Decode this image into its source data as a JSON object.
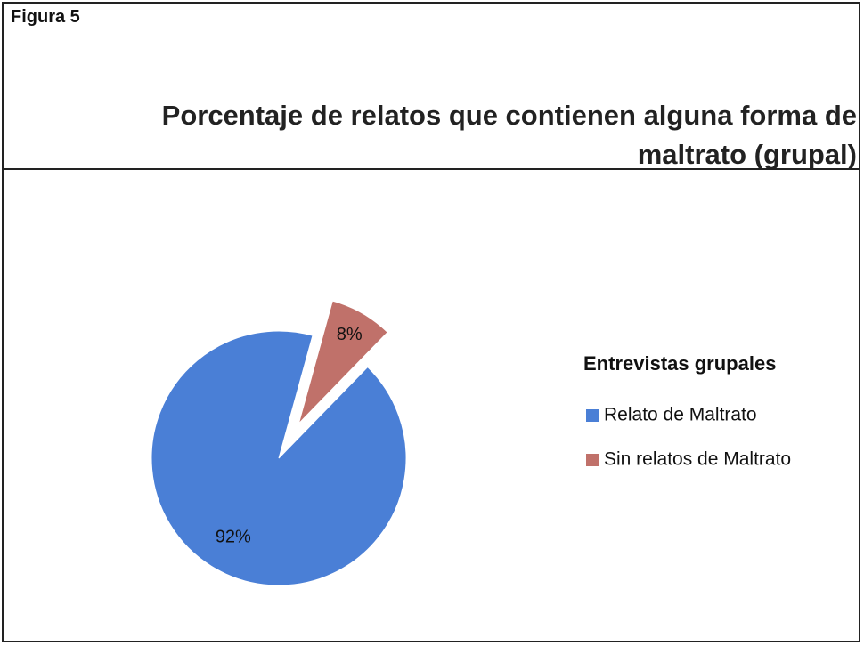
{
  "figure": "Figura 5",
  "chart_data": {
    "type": "pie",
    "title": "Porcentaje de relatos que contienen alguna forma de maltrato (grupal)",
    "legend_title": "Entrevistas grupales",
    "categories": [
      "Relato de Maltrato",
      "Sin relatos de Maltrato"
    ],
    "values": [
      92,
      8
    ],
    "value_labels": [
      "92%",
      "8%"
    ],
    "colors": [
      "#4a7fd6",
      "#c0716a"
    ],
    "legend": "right"
  }
}
